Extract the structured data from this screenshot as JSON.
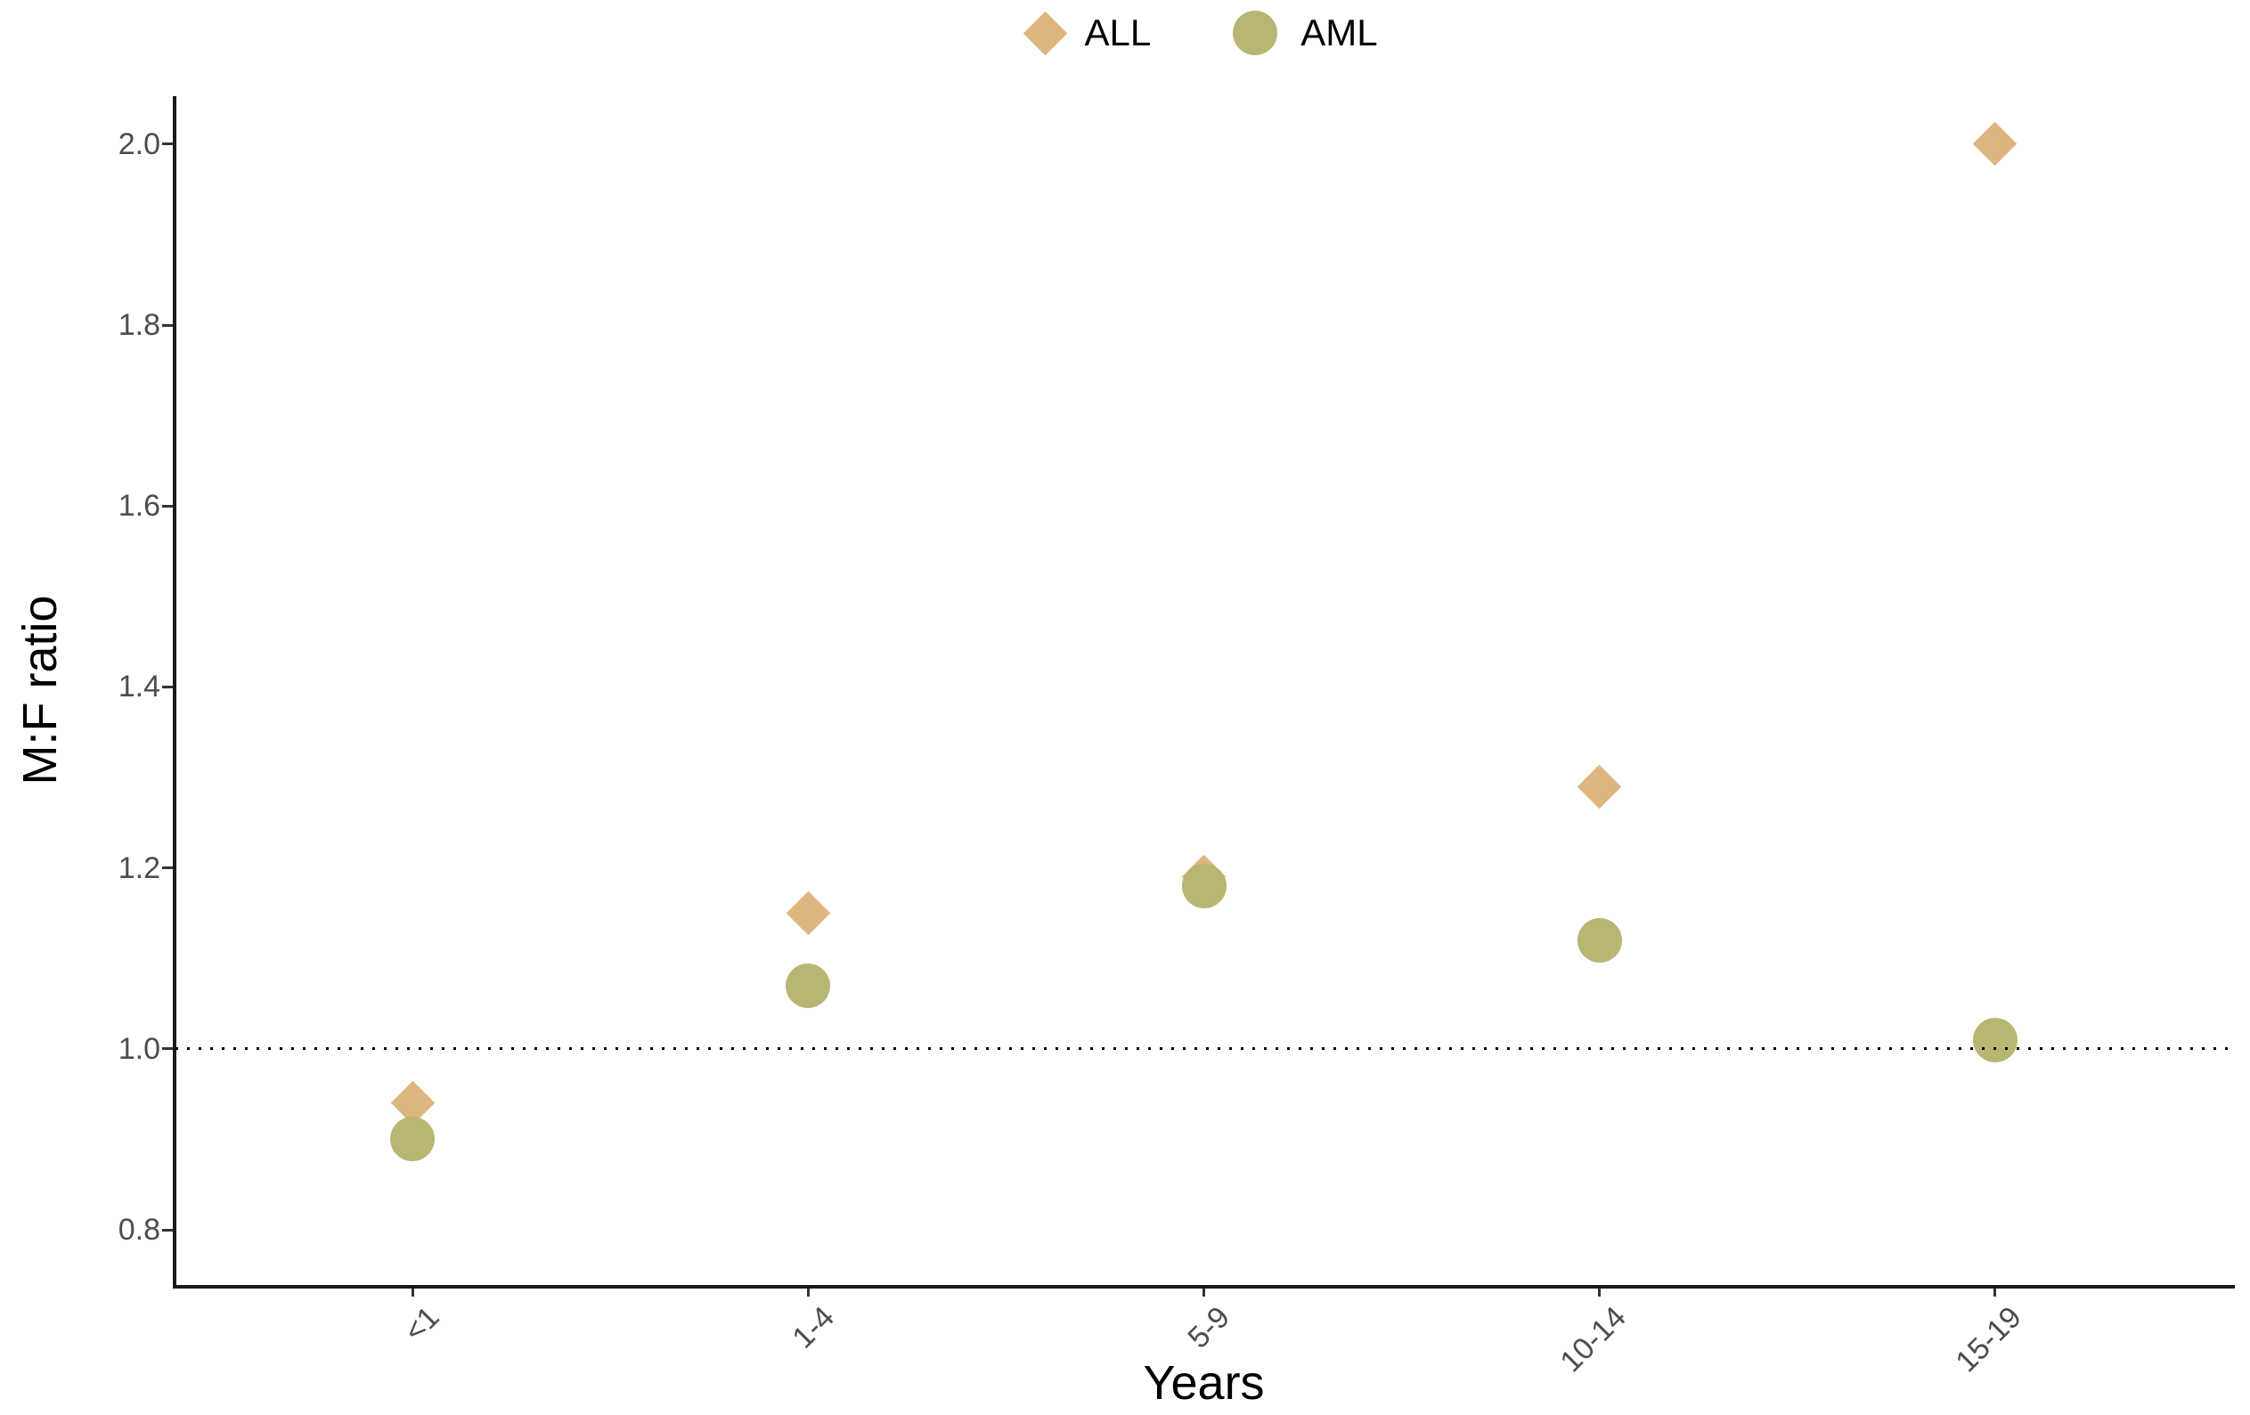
{
  "chart_data": {
    "type": "scatter",
    "title": "",
    "xlabel": "Years",
    "ylabel": "M:F ratio",
    "categories": [
      "<1",
      "1-4",
      "5-9",
      "10-14",
      "15-19"
    ],
    "series": [
      {
        "name": "ALL",
        "marker": "diamond",
        "color": "#ddb57f",
        "values": [
          0.94,
          1.15,
          1.19,
          1.29,
          2.0
        ]
      },
      {
        "name": "AML",
        "marker": "circle",
        "color": "#b9b674",
        "values": [
          0.9,
          1.07,
          1.18,
          1.12,
          1.01
        ]
      }
    ],
    "yticks": [
      0.8,
      1.0,
      1.2,
      1.4,
      1.6,
      1.8,
      2.0
    ],
    "ytick_labels": [
      "0.8",
      "1.0",
      "1.2",
      "1.4",
      "1.6",
      "1.8",
      "2.0"
    ],
    "ylim": [
      0.739,
      2.053
    ],
    "reference_line": {
      "y": 1.0,
      "style": "dotted",
      "color": "#000000"
    },
    "legend_position": "top-center",
    "grid": false,
    "axis_color": "#1a1a1a",
    "tick_label_color": "#4d4d4d"
  }
}
